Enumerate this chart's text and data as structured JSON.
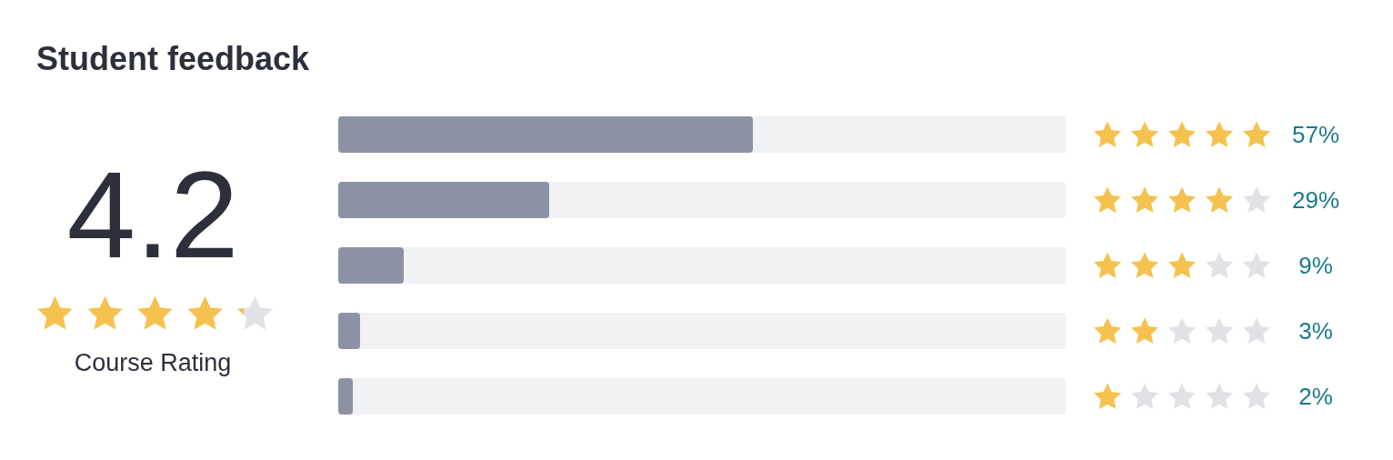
{
  "chart_data": {
    "type": "bar",
    "orientation": "horizontal",
    "title": "Student feedback",
    "annotations": [
      "4.2",
      "Course Rating"
    ],
    "categories": [
      null,
      null,
      null,
      null,
      null
    ],
    "values": [
      57,
      29,
      9,
      3,
      2
    ],
    "value_labels": [
      "57%",
      "29%",
      "9%",
      "3%",
      "2%"
    ],
    "color": "#8c92a4",
    "xlim": [
      0,
      100
    ],
    "tick_labels": false
  }
}
